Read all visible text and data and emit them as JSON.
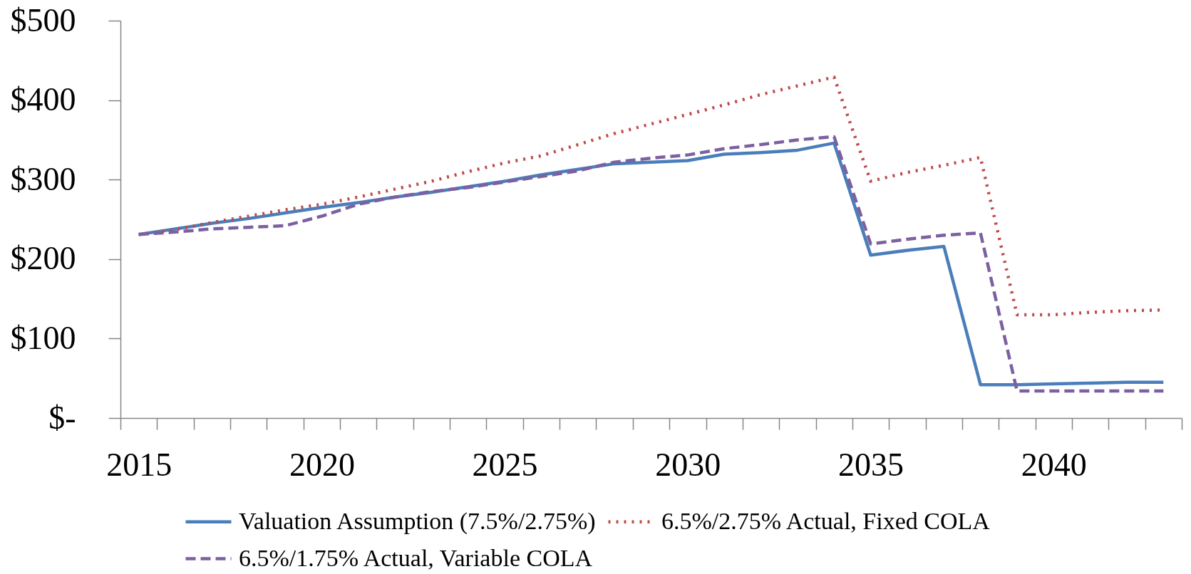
{
  "chart_data": {
    "type": "line",
    "categories": [
      "2015",
      null,
      null,
      null,
      null,
      "2020",
      null,
      null,
      null,
      null,
      "2025",
      null,
      null,
      null,
      null,
      "2030",
      null,
      null,
      null,
      null,
      "2035",
      null,
      null,
      null,
      null,
      "2040",
      null,
      null,
      null
    ],
    "ylim": [
      0,
      500
    ],
    "yticks": [
      {
        "value": 0,
        "label": "$-"
      },
      {
        "value": 100,
        "label": "$100"
      },
      {
        "value": 200,
        "label": "$200"
      },
      {
        "value": 300,
        "label": "$300"
      },
      {
        "value": 400,
        "label": "$400"
      },
      {
        "value": 500,
        "label": "$500"
      }
    ],
    "legend": "bottom",
    "series": [
      {
        "name": "Valuation Assumption (7.5%/2.75%)",
        "color": "#4a7ebb",
        "line_style": "solid",
        "values": [
          231,
          238,
          245,
          251,
          258,
          265,
          271,
          278,
          284,
          291,
          298,
          306,
          313,
          320,
          322,
          324,
          332,
          334,
          337,
          346,
          205,
          211,
          216,
          42,
          42,
          43,
          44,
          45,
          45
        ]
      },
      {
        "name": "6.5%/2.75% Actual, Fixed COLA",
        "color": "#be4b48",
        "line_style": "dotted",
        "values": [
          231,
          237,
          246,
          254,
          262,
          269,
          278,
          288,
          298,
          310,
          321,
          330,
          344,
          358,
          370,
          382,
          394,
          407,
          418,
          429,
          298,
          309,
          318,
          328,
          130,
          130,
          133,
          135,
          136
        ]
      },
      {
        "name": "6.5%/1.75% Actual, Variable COLA",
        "color": "#7d60a0",
        "line_style": "dashed",
        "values": [
          231,
          234,
          238,
          240,
          242,
          254,
          269,
          278,
          285,
          290,
          297,
          304,
          311,
          322,
          327,
          331,
          339,
          344,
          350,
          354,
          219,
          225,
          230,
          233,
          34,
          34,
          34,
          34,
          34
        ]
      }
    ]
  }
}
